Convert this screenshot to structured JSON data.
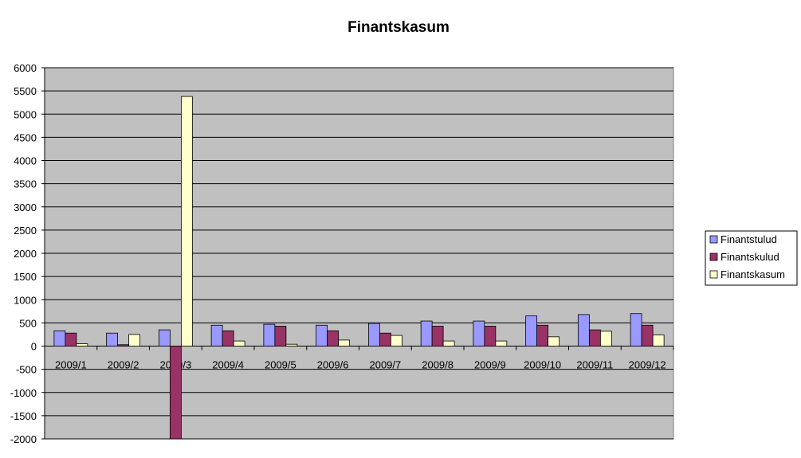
{
  "chart_data": {
    "type": "bar",
    "title": "Finantskasum",
    "xlabel": "",
    "ylabel": "",
    "categories": [
      "2009/1",
      "2009/2",
      "2009/3",
      "2009/4",
      "2009/5",
      "2009/6",
      "2009/7",
      "2009/8",
      "2009/9",
      "2009/10",
      "2009/11",
      "2009/12"
    ],
    "series": [
      {
        "name": "Finantstulud",
        "color": "#9999ff",
        "values": [
          330,
          280,
          350,
          450,
          470,
          450,
          490,
          540,
          540,
          650,
          680,
          700
        ]
      },
      {
        "name": "Finantskulud",
        "color": "#993366",
        "values": [
          280,
          30,
          -2000,
          330,
          430,
          330,
          280,
          430,
          430,
          450,
          350,
          450
        ]
      },
      {
        "name": "Finantskasum",
        "color": "#ffffcc",
        "values": [
          50,
          250,
          5380,
          110,
          40,
          130,
          230,
          110,
          110,
          200,
          320,
          240
        ]
      }
    ],
    "ylim": [
      -2000,
      6000
    ],
    "yticks": [
      6000,
      5500,
      5000,
      4500,
      4000,
      3500,
      3000,
      2500,
      2000,
      1500,
      1000,
      500,
      0,
      -500,
      -1000,
      -1500,
      -2000
    ],
    "grid": true,
    "legend_position": "right",
    "plot_background": "#c0c0c0"
  }
}
